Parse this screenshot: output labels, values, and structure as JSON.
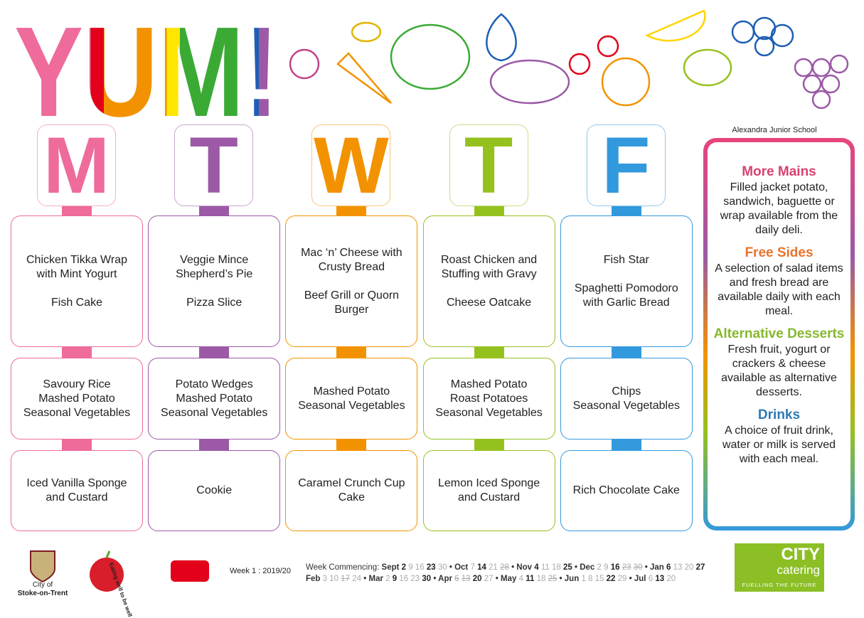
{
  "logo": "YUM!",
  "school": "Alexandra Junior School",
  "days": [
    {
      "letter": "M",
      "color": "#ee6b9b",
      "main": [
        "Chicken Tikka Wrap with Mint Yogurt",
        "Fish Cake"
      ],
      "sides": [
        "Savoury Rice",
        "Mashed Potato",
        "Seasonal Vegetables"
      ],
      "dessert": [
        "Iced Vanilla Sponge and Custard"
      ]
    },
    {
      "letter": "T",
      "color": "#9b59a6",
      "main": [
        "Veggie Mince Shepherd’s Pie",
        "Pizza Slice"
      ],
      "sides": [
        "Potato Wedges",
        "Mashed Potato",
        "Seasonal Vegetables"
      ],
      "dessert": [
        "Cookie"
      ]
    },
    {
      "letter": "W",
      "color": "#f39200",
      "main": [
        "Mac ‘n’ Cheese with Crusty Bread",
        "Beef Grill or Quorn Burger"
      ],
      "sides": [
        "Mashed Potato",
        "Seasonal Vegetables"
      ],
      "dessert": [
        "Caramel Crunch Cup Cake"
      ]
    },
    {
      "letter": "T",
      "color": "#95c11f",
      "main": [
        "Roast Chicken and Stuffing with Gravy",
        "Cheese Oatcake"
      ],
      "sides": [
        "Mashed Potato",
        "Roast Potatoes",
        "Seasonal Vegetables"
      ],
      "dessert": [
        "Lemon Iced Sponge and Custard"
      ]
    },
    {
      "letter": "F",
      "color": "#3399dd",
      "main": [
        "Fish Star",
        "Spaghetti Pomodoro with Garlic Bread"
      ],
      "sides": [
        "Chips",
        "Seasonal Vegetables"
      ],
      "dessert": [
        "Rich Chocolate Cake"
      ]
    }
  ],
  "info": [
    {
      "title": "More Mains",
      "color": "#d9426f",
      "text": "Filled jacket potato, sandwich, baguette or wrap available from the daily deli."
    },
    {
      "title": "Free Sides",
      "color": "#e8742e",
      "text": "A selection of salad items and fresh bread are available daily with each meal."
    },
    {
      "title": "Alternative Desserts",
      "color": "#86b82e",
      "text": "Fresh fruit, yogurt or crackers & cheese available as alternative desserts."
    },
    {
      "title": "Drinks",
      "color": "#2d7bb3",
      "text": "A choice of fruit drink, water or milk is served with each meal."
    }
  ],
  "footer": {
    "council": [
      "City of",
      "Stoke-on-Trent"
    ],
    "apple": "Eating well to be well",
    "week": "Week 1 : 2019/20",
    "commencing": "Week Commencing:",
    "rows": [
      [
        {
          "name": "Sept",
          "dates": [
            {
              "d": "2",
              "bold": true
            },
            {
              "d": "9"
            },
            {
              "d": "16"
            },
            {
              "d": "23",
              "bold": true
            },
            {
              "d": "30"
            }
          ]
        },
        {
          "name": "Oct",
          "dates": [
            {
              "d": "7"
            },
            {
              "d": "14",
              "bold": true
            },
            {
              "d": "21"
            },
            {
              "d": "28",
              "struck": true
            }
          ]
        },
        {
          "name": "Nov",
          "dates": [
            {
              "d": "4",
              "bold": true
            },
            {
              "d": "11"
            },
            {
              "d": "18"
            },
            {
              "d": "25",
              "bold": true
            }
          ]
        },
        {
          "name": "Dec",
          "dates": [
            {
              "d": "2"
            },
            {
              "d": "9"
            },
            {
              "d": "16",
              "bold": true
            },
            {
              "d": "23",
              "struck": true
            },
            {
              "d": "30",
              "struck": true
            }
          ]
        },
        {
          "name": "Jan",
          "dates": [
            {
              "d": "6",
              "bold": true
            },
            {
              "d": "13"
            },
            {
              "d": "20"
            },
            {
              "d": "27",
              "bold": true
            }
          ]
        }
      ],
      [
        {
          "name": "Feb",
          "dates": [
            {
              "d": "3"
            },
            {
              "d": "10"
            },
            {
              "d": "17",
              "struck": true
            },
            {
              "d": "24"
            }
          ]
        },
        {
          "name": "Mar",
          "dates": [
            {
              "d": "2"
            },
            {
              "d": "9",
              "bold": true
            },
            {
              "d": "16"
            },
            {
              "d": "23"
            },
            {
              "d": "30",
              "bold": true
            }
          ]
        },
        {
          "name": "Apr",
          "dates": [
            {
              "d": "6",
              "struck": true
            },
            {
              "d": "13",
              "struck": true
            },
            {
              "d": "20",
              "bold": true
            },
            {
              "d": "27"
            }
          ]
        },
        {
          "name": "May",
          "dates": [
            {
              "d": "4"
            },
            {
              "d": "11",
              "bold": true
            },
            {
              "d": "18"
            },
            {
              "d": "25",
              "struck": true
            }
          ]
        },
        {
          "name": "Jun",
          "dates": [
            {
              "d": "1"
            },
            {
              "d": "8"
            },
            {
              "d": "15"
            },
            {
              "d": "22",
              "bold": true
            },
            {
              "d": "29"
            }
          ]
        },
        {
          "name": "Jul",
          "dates": [
            {
              "d": "6"
            },
            {
              "d": "13",
              "bold": true
            },
            {
              "d": "20"
            }
          ]
        }
      ]
    ],
    "catering": {
      "name": "CITY",
      "sub": "catering",
      "tag": "FUELLING THE FUTURE"
    }
  }
}
